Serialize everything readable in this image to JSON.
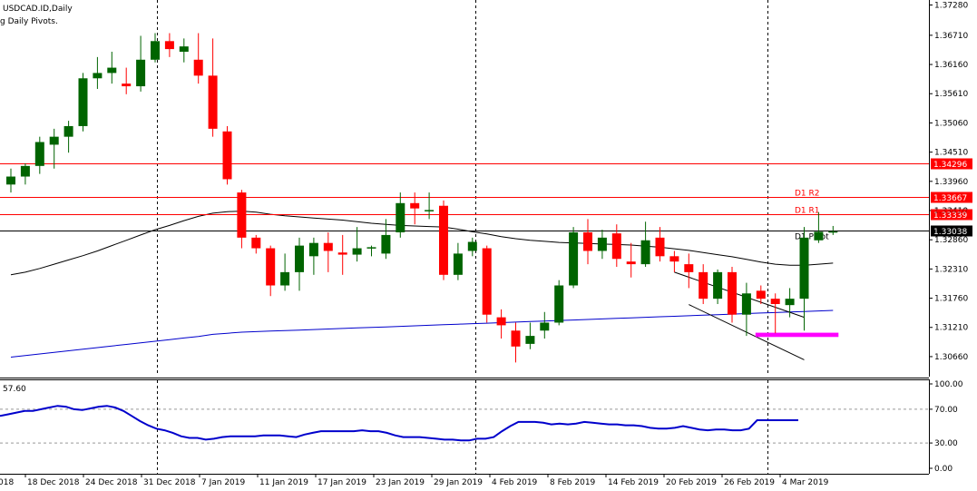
{
  "header": {
    "symbol": "USDCAD.ID,Daily",
    "indicator": "g Daily Pivots."
  },
  "colors": {
    "bull": "#006400",
    "bear": "#ff0000",
    "pivot_line": "#000000",
    "resistance_line": "#ff0000",
    "ma_short": "#000000",
    "ma_long": "#0000cc",
    "highlight_zone": "#ff00ff",
    "rsi_line": "#0000cc",
    "current_price_label_bg": "#000000"
  },
  "chart_data": [
    {
      "type": "candlestick",
      "title": "USDCAD.ID,Daily",
      "ylim": [
        1.303,
        1.3734
      ],
      "y_ticks": [
        "1.37280",
        "1.36710",
        "1.36160",
        "1.35610",
        "1.35060",
        "1.34510",
        "1.33960",
        "1.33410",
        "1.32860",
        "1.32310",
        "1.31760",
        "1.31210",
        "1.30660"
      ],
      "x_labels": [
        "18 Dec 2018",
        "24 Dec 2018",
        "31 Dec 2018",
        "7 Jan 2019",
        "11 Jan 2019",
        "17 Jan 2019",
        "23 Jan 2019",
        "29 Jan 2019",
        "4 Feb 2019",
        "8 Feb 2019",
        "14 Feb 2019",
        "20 Feb 2019",
        "26 Feb 2019",
        "4 Mar 2019"
      ],
      "x_label_partial": "018",
      "candles": [
        {
          "o": 1.339,
          "h": 1.342,
          "l": 1.3375,
          "c": 1.3405
        },
        {
          "o": 1.3405,
          "h": 1.343,
          "l": 1.339,
          "c": 1.3425
        },
        {
          "o": 1.3425,
          "h": 1.348,
          "l": 1.341,
          "c": 1.347
        },
        {
          "o": 1.3465,
          "h": 1.3495,
          "l": 1.342,
          "c": 1.348
        },
        {
          "o": 1.348,
          "h": 1.351,
          "l": 1.345,
          "c": 1.35
        },
        {
          "o": 1.35,
          "h": 1.36,
          "l": 1.349,
          "c": 1.359
        },
        {
          "o": 1.359,
          "h": 1.363,
          "l": 1.357,
          "c": 1.36
        },
        {
          "o": 1.36,
          "h": 1.364,
          "l": 1.358,
          "c": 1.361
        },
        {
          "o": 1.358,
          "h": 1.361,
          "l": 1.356,
          "c": 1.3575
        },
        {
          "o": 1.3575,
          "h": 1.367,
          "l": 1.3565,
          "c": 1.3625
        },
        {
          "o": 1.3625,
          "h": 1.3675,
          "l": 1.362,
          "c": 1.366
        },
        {
          "o": 1.366,
          "h": 1.3675,
          "l": 1.363,
          "c": 1.3645
        },
        {
          "o": 1.364,
          "h": 1.3665,
          "l": 1.362,
          "c": 1.365
        },
        {
          "o": 1.3625,
          "h": 1.3675,
          "l": 1.358,
          "c": 1.3595
        },
        {
          "o": 1.3595,
          "h": 1.3665,
          "l": 1.348,
          "c": 1.3495
        },
        {
          "o": 1.349,
          "h": 1.35,
          "l": 1.339,
          "c": 1.34
        },
        {
          "o": 1.3375,
          "h": 1.338,
          "l": 1.327,
          "c": 1.329
        },
        {
          "o": 1.329,
          "h": 1.3295,
          "l": 1.326,
          "c": 1.327
        },
        {
          "o": 1.327,
          "h": 1.3275,
          "l": 1.318,
          "c": 1.32
        },
        {
          "o": 1.32,
          "h": 1.326,
          "l": 1.319,
          "c": 1.3225
        },
        {
          "o": 1.3225,
          "h": 1.329,
          "l": 1.319,
          "c": 1.3275
        },
        {
          "o": 1.3255,
          "h": 1.329,
          "l": 1.322,
          "c": 1.328
        },
        {
          "o": 1.328,
          "h": 1.33,
          "l": 1.3225,
          "c": 1.3265
        },
        {
          "o": 1.3262,
          "h": 1.3295,
          "l": 1.322,
          "c": 1.3258
        },
        {
          "o": 1.3258,
          "h": 1.331,
          "l": 1.3245,
          "c": 1.327
        },
        {
          "o": 1.327,
          "h": 1.3275,
          "l": 1.3255,
          "c": 1.3272
        },
        {
          "o": 1.326,
          "h": 1.3325,
          "l": 1.325,
          "c": 1.3295
        },
        {
          "o": 1.33,
          "h": 1.3375,
          "l": 1.329,
          "c": 1.3355
        },
        {
          "o": 1.3355,
          "h": 1.3375,
          "l": 1.3315,
          "c": 1.3345
        },
        {
          "o": 1.334,
          "h": 1.3375,
          "l": 1.3325,
          "c": 1.3342
        },
        {
          "o": 1.335,
          "h": 1.336,
          "l": 1.321,
          "c": 1.322
        },
        {
          "o": 1.322,
          "h": 1.328,
          "l": 1.321,
          "c": 1.326
        },
        {
          "o": 1.3265,
          "h": 1.329,
          "l": 1.3255,
          "c": 1.3282
        },
        {
          "o": 1.327,
          "h": 1.3275,
          "l": 1.313,
          "c": 1.3145
        },
        {
          "o": 1.314,
          "h": 1.3155,
          "l": 1.31,
          "c": 1.3125
        },
        {
          "o": 1.3115,
          "h": 1.313,
          "l": 1.3055,
          "c": 1.3085
        },
        {
          "o": 1.309,
          "h": 1.313,
          "l": 1.308,
          "c": 1.3105
        },
        {
          "o": 1.3115,
          "h": 1.315,
          "l": 1.31,
          "c": 1.313
        },
        {
          "o": 1.313,
          "h": 1.321,
          "l": 1.3125,
          "c": 1.32
        },
        {
          "o": 1.32,
          "h": 1.331,
          "l": 1.3195,
          "c": 1.33
        },
        {
          "o": 1.33,
          "h": 1.3325,
          "l": 1.324,
          "c": 1.3265
        },
        {
          "o": 1.3265,
          "h": 1.3305,
          "l": 1.325,
          "c": 1.329
        },
        {
          "o": 1.3298,
          "h": 1.3315,
          "l": 1.3235,
          "c": 1.325
        },
        {
          "o": 1.3245,
          "h": 1.328,
          "l": 1.3215,
          "c": 1.324
        },
        {
          "o": 1.324,
          "h": 1.332,
          "l": 1.3235,
          "c": 1.3285
        },
        {
          "o": 1.329,
          "h": 1.331,
          "l": 1.3245,
          "c": 1.3255
        },
        {
          "o": 1.3255,
          "h": 1.3265,
          "l": 1.3225,
          "c": 1.3245
        },
        {
          "o": 1.324,
          "h": 1.326,
          "l": 1.3195,
          "c": 1.3225
        },
        {
          "o": 1.3225,
          "h": 1.324,
          "l": 1.3165,
          "c": 1.3175
        },
        {
          "o": 1.3175,
          "h": 1.323,
          "l": 1.3165,
          "c": 1.3225
        },
        {
          "o": 1.3225,
          "h": 1.3235,
          "l": 1.313,
          "c": 1.3145
        },
        {
          "o": 1.3145,
          "h": 1.3205,
          "l": 1.3105,
          "c": 1.3185
        },
        {
          "o": 1.319,
          "h": 1.32,
          "l": 1.3165,
          "c": 1.3175
        },
        {
          "o": 1.3175,
          "h": 1.3185,
          "l": 1.311,
          "c": 1.3165
        },
        {
          "o": 1.3163,
          "h": 1.3195,
          "l": 1.314,
          "c": 1.3175
        },
        {
          "o": 1.3175,
          "h": 1.331,
          "l": 1.3115,
          "c": 1.329
        },
        {
          "o": 1.3285,
          "h": 1.3338,
          "l": 1.328,
          "c": 1.3301
        },
        {
          "o": 1.33,
          "h": 1.3312,
          "l": 1.3295,
          "c": 1.3302
        }
      ],
      "ma_short": [
        1.322,
        1.3225,
        1.3232,
        1.324,
        1.3248,
        1.3256,
        1.3265,
        1.3275,
        1.3285,
        1.3295,
        1.3305,
        1.3313,
        1.3322,
        1.333,
        1.3336,
        1.3339,
        1.334,
        1.3338,
        1.3334,
        1.3331,
        1.3329,
        1.3327,
        1.3325,
        1.3323,
        1.332,
        1.3317,
        1.3315,
        1.3313,
        1.3312,
        1.3311,
        1.331,
        1.3306,
        1.3301,
        1.3297,
        1.3292,
        1.3288,
        1.3285,
        1.3283,
        1.3281,
        1.328,
        1.3279,
        1.3278,
        1.3277,
        1.3276,
        1.3274,
        1.3272,
        1.3269,
        1.3266,
        1.3262,
        1.3258,
        1.3254,
        1.3249,
        1.3244,
        1.324,
        1.3238,
        1.3238,
        1.324,
        1.3242
      ],
      "ma_long": [
        1.3065,
        1.3068,
        1.3071,
        1.3074,
        1.3077,
        1.308,
        1.3083,
        1.3086,
        1.3089,
        1.3092,
        1.3095,
        1.3098,
        1.3101,
        1.3104,
        1.3108,
        1.311,
        1.3112,
        1.3113,
        1.3114,
        1.3115,
        1.3116,
        1.3117,
        1.3118,
        1.3119,
        1.312,
        1.3121,
        1.3122,
        1.3123,
        1.3124,
        1.3125,
        1.3126,
        1.3127,
        1.3128,
        1.3129,
        1.313,
        1.3131,
        1.3132,
        1.3133,
        1.3134,
        1.3135,
        1.3136,
        1.3137,
        1.3138,
        1.3139,
        1.314,
        1.3141,
        1.3142,
        1.3143,
        1.3144,
        1.3145,
        1.3146,
        1.3147,
        1.3148,
        1.3149,
        1.315,
        1.3151,
        1.3152,
        1.3153
      ],
      "trendlines": [
        {
          "from": [
            46,
            1.3225
          ],
          "to": [
            55,
            1.314
          ]
        },
        {
          "from": [
            47,
            1.3164
          ],
          "to": [
            55,
            1.306
          ]
        }
      ],
      "support_zone": {
        "from_index": 52,
        "to_index": 57,
        "y_low": 1.3103,
        "y_high": 1.3111
      },
      "pivot_levels": [
        {
          "name": "D1 R2",
          "value": 1.33667,
          "label": "1.33667"
        },
        {
          "name": "D1 R1",
          "value": 1.33339,
          "label": "1.33339"
        },
        {
          "name": "D1 Pivot",
          "value": 1.33038,
          "label": "1.33038"
        },
        {
          "name": "",
          "value": 1.34296,
          "label": "1.34296"
        }
      ],
      "partial_label": "1.33410",
      "current_price": "1.33038"
    },
    {
      "type": "line",
      "title": "57.60",
      "ylim": [
        0,
        100
      ],
      "y_ticks": [
        "100.00",
        "70.00",
        "30.00",
        "0.00"
      ],
      "levels": [
        70,
        30
      ],
      "values": [
        62,
        64,
        66,
        68,
        68,
        70,
        72,
        74,
        73,
        70,
        69,
        71,
        73,
        74,
        72,
        68,
        62,
        56,
        51,
        47,
        45,
        42,
        38,
        36,
        36,
        34,
        35,
        37,
        38,
        38,
        38,
        38,
        39,
        39,
        39,
        38,
        37,
        40,
        42,
        44,
        44,
        44,
        44,
        44,
        45,
        44,
        44,
        42,
        39,
        37,
        37,
        37,
        36,
        35,
        34,
        34,
        33,
        33,
        35,
        35,
        37,
        44,
        50,
        55,
        55,
        55,
        54,
        52,
        53,
        52,
        53,
        55,
        54,
        53,
        52,
        52,
        51,
        51,
        50,
        48,
        47,
        47,
        48,
        50,
        48,
        46,
        45,
        46,
        46,
        45,
        45,
        47,
        57,
        57,
        57,
        57,
        57,
        57
      ]
    }
  ]
}
